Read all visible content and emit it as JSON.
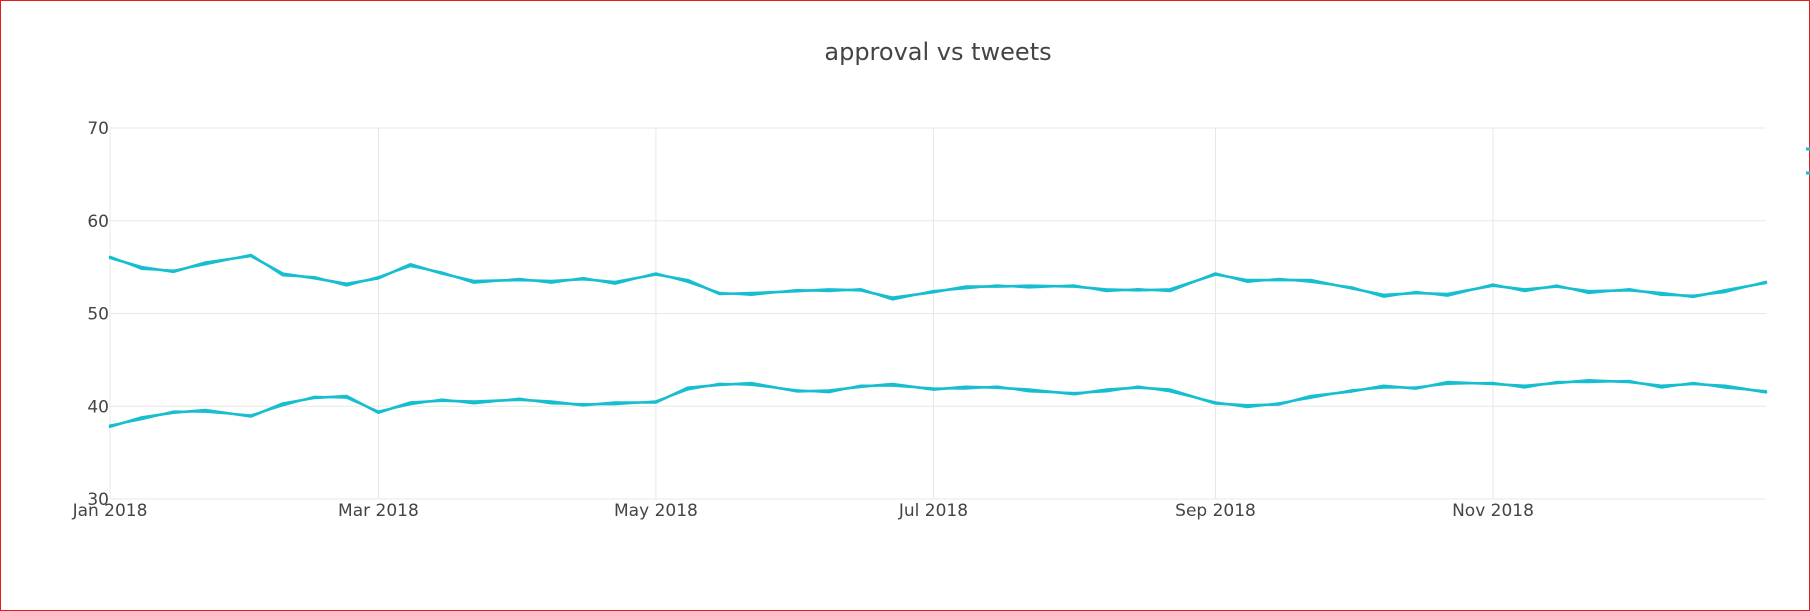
{
  "chart_data": {
    "type": "line",
    "title": "approval vs tweets",
    "xlabel": "",
    "ylabel": "",
    "x_range": [
      "2018-01-01",
      "2018-12-31"
    ],
    "ylim": [
      30,
      70
    ],
    "y_ticks": [
      30,
      40,
      50,
      60,
      70
    ],
    "x_ticks": [
      {
        "date": "2018-01-01",
        "label": "Jan 2018"
      },
      {
        "date": "2018-03-01",
        "label": "Mar 2018"
      },
      {
        "date": "2018-05-01",
        "label": "May 2018"
      },
      {
        "date": "2018-07-01",
        "label": "Jul 2018"
      },
      {
        "date": "2018-09-01",
        "label": "Sep 2018"
      },
      {
        "date": "2018-11-01",
        "label": "Nov 2018"
      }
    ],
    "grid": true,
    "legend": "right, cropped",
    "color": "#17becf",
    "series": [
      {
        "x": [
          "2018-01-01",
          "2018-01-08",
          "2018-01-15",
          "2018-01-22",
          "2018-02-01",
          "2018-02-08",
          "2018-02-15",
          "2018-02-22",
          "2018-03-01",
          "2018-03-08",
          "2018-03-15",
          "2018-03-22",
          "2018-04-01",
          "2018-04-08",
          "2018-04-15",
          "2018-04-22",
          "2018-05-01",
          "2018-05-08",
          "2018-05-15",
          "2018-05-22",
          "2018-06-01",
          "2018-06-08",
          "2018-06-15",
          "2018-06-22",
          "2018-07-01",
          "2018-07-08",
          "2018-07-15",
          "2018-07-22",
          "2018-08-01",
          "2018-08-08",
          "2018-08-15",
          "2018-08-22",
          "2018-09-01",
          "2018-09-08",
          "2018-09-15",
          "2018-09-22",
          "2018-10-01",
          "2018-10-08",
          "2018-10-15",
          "2018-10-22",
          "2018-11-01",
          "2018-11-08",
          "2018-11-15",
          "2018-11-22",
          "2018-12-01",
          "2018-12-08",
          "2018-12-15",
          "2018-12-22",
          "2018-12-31"
        ],
        "values": [
          56.0,
          55.0,
          54.5,
          55.5,
          56.2,
          54.3,
          53.8,
          53.2,
          53.8,
          55.3,
          54.3,
          53.5,
          53.6,
          53.5,
          53.7,
          53.4,
          54.2,
          53.6,
          52.1,
          52.2,
          52.4,
          52.6,
          52.5,
          51.7,
          52.3,
          52.9,
          52.9,
          53.0,
          52.9,
          52.6,
          52.5,
          52.6,
          54.2,
          53.6,
          53.6,
          53.6,
          52.7,
          52.0,
          52.2,
          52.1,
          53.0,
          52.6,
          52.9,
          52.4,
          52.5,
          52.2,
          51.8,
          52.5,
          53.3
        ]
      },
      {
        "x": [
          "2018-01-01",
          "2018-01-08",
          "2018-01-15",
          "2018-01-22",
          "2018-02-01",
          "2018-02-08",
          "2018-02-15",
          "2018-02-22",
          "2018-03-01",
          "2018-03-08",
          "2018-03-15",
          "2018-03-22",
          "2018-04-01",
          "2018-04-08",
          "2018-04-15",
          "2018-04-22",
          "2018-05-01",
          "2018-05-08",
          "2018-05-15",
          "2018-05-22",
          "2018-06-01",
          "2018-06-08",
          "2018-06-15",
          "2018-06-22",
          "2018-07-01",
          "2018-07-08",
          "2018-07-15",
          "2018-07-22",
          "2018-08-01",
          "2018-08-08",
          "2018-08-15",
          "2018-08-22",
          "2018-09-01",
          "2018-09-08",
          "2018-09-15",
          "2018-09-22",
          "2018-10-01",
          "2018-10-08",
          "2018-10-15",
          "2018-10-22",
          "2018-11-01",
          "2018-11-08",
          "2018-11-15",
          "2018-11-22",
          "2018-12-01",
          "2018-12-08",
          "2018-12-15",
          "2018-12-22",
          "2018-12-31"
        ],
        "values": [
          37.8,
          38.8,
          39.3,
          39.6,
          38.9,
          40.3,
          40.9,
          41.1,
          39.3,
          40.4,
          40.6,
          40.5,
          40.7,
          40.5,
          40.1,
          40.4,
          40.4,
          42.0,
          42.3,
          42.5,
          41.6,
          41.7,
          42.1,
          42.4,
          41.8,
          42.1,
          42.0,
          41.8,
          41.3,
          41.8,
          42.0,
          41.8,
          40.3,
          40.1,
          40.2,
          41.1,
          41.6,
          42.2,
          41.9,
          42.6,
          42.4,
          42.2,
          42.5,
          42.8,
          42.6,
          42.2,
          42.4,
          42.2,
          41.5
        ]
      }
    ]
  }
}
